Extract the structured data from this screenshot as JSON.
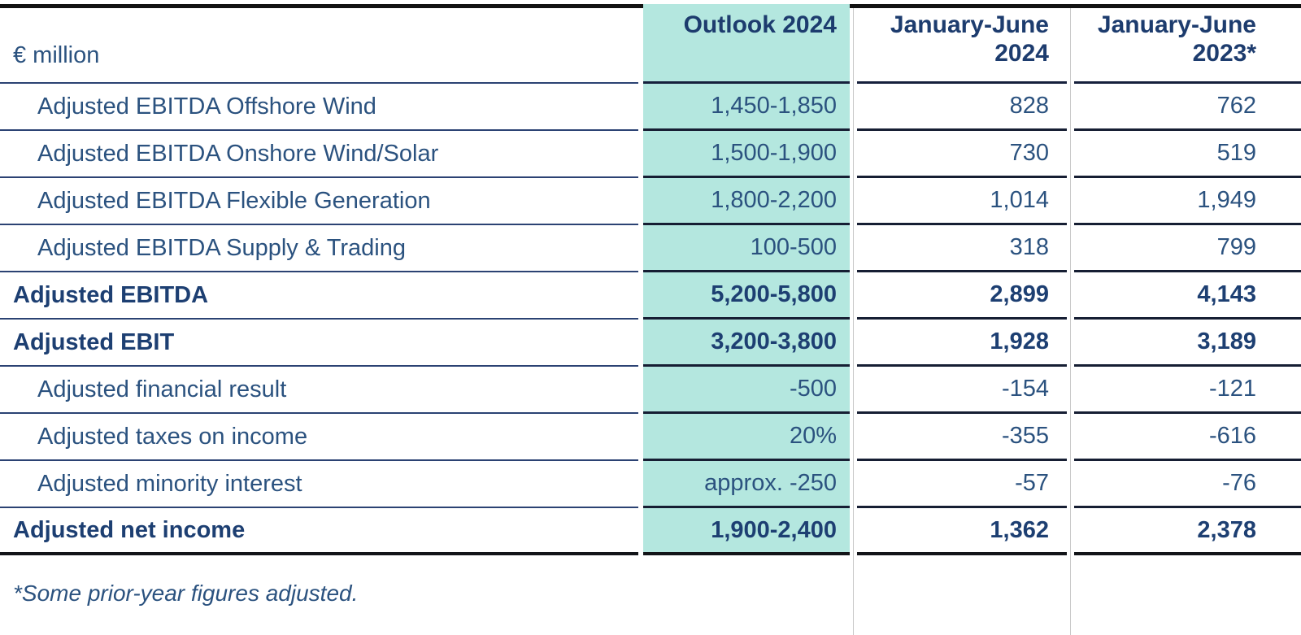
{
  "header": {
    "unit_label": "€ million"
  },
  "footnote": {
    "text": "*Some prior-year figures adjusted."
  },
  "colors": {
    "highlight_teal": "#b4e7df",
    "navy_bold_text": "#1d3c6e",
    "body_text": "#2b527f",
    "row_separator": "#2b4273",
    "value_separator": "#161e33",
    "frame_black": "#121212",
    "column_divider_gray": "#c9c9c9"
  },
  "chart_data": {
    "type": "table",
    "title": "",
    "unit": "€ million",
    "columns": [
      "Outlook 2024",
      "January-June 2024",
      "January-June 2023*"
    ],
    "highlighted_column": "Outlook 2024",
    "rows": [
      [
        "Adjusted EBITDA Offshore Wind",
        "1,450-1,850",
        "828",
        "762"
      ],
      [
        "Adjusted EBITDA Onshore Wind/Solar",
        "1,500-1,900",
        "730",
        "519"
      ],
      [
        "Adjusted EBITDA Flexible Generation",
        "1,800-2,200",
        "1,014",
        "1,949"
      ],
      [
        "Adjusted EBITDA Supply & Trading",
        "100-500",
        "318",
        "799"
      ],
      [
        "Adjusted EBITDA",
        "5,200-5,800",
        "2,899",
        "4,143"
      ],
      [
        "Adjusted EBIT",
        "3,200-3,800",
        "1,928",
        "3,189"
      ],
      [
        "Adjusted financial result",
        "-500",
        "-154",
        "-121"
      ],
      [
        "Adjusted taxes on income",
        "20%",
        "-355",
        "-616"
      ],
      [
        "Adjusted minority interest",
        "approx. -250",
        "-57",
        "-76"
      ],
      [
        "Adjusted net income",
        "1,900-2,400",
        "1,362",
        "2,378"
      ]
    ],
    "bold_row_indices": [
      4,
      5,
      9
    ],
    "footnote": "*Some prior-year figures adjusted."
  }
}
